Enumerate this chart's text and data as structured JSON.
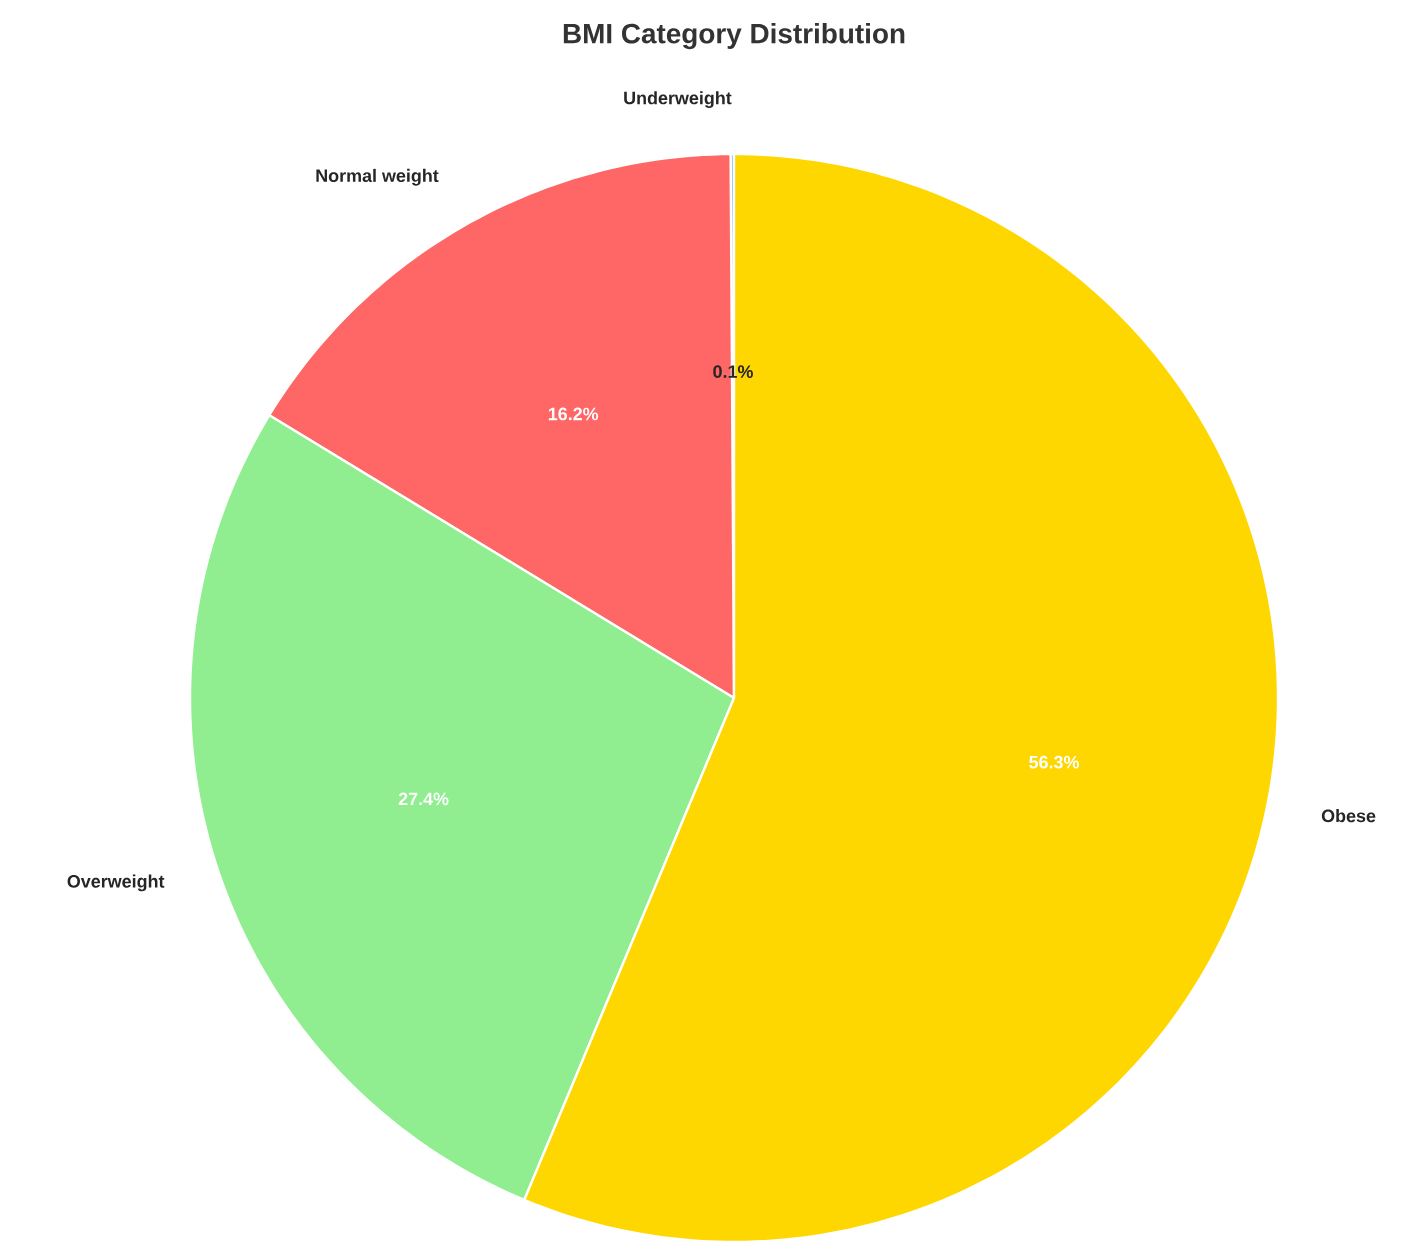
{
  "chart_data": {
    "type": "pie",
    "title": "BMI Category Distribution",
    "categories": [
      "Underweight",
      "Normal weight",
      "Overweight",
      "Obese"
    ],
    "values": [
      0.1,
      16.2,
      27.4,
      56.3
    ],
    "colors": [
      "#66b3ff",
      "#ff6666",
      "#90ee90",
      "#ffd700"
    ],
    "value_labels": [
      "0.1%",
      "16.2%",
      "27.4%",
      "56.3%"
    ]
  }
}
